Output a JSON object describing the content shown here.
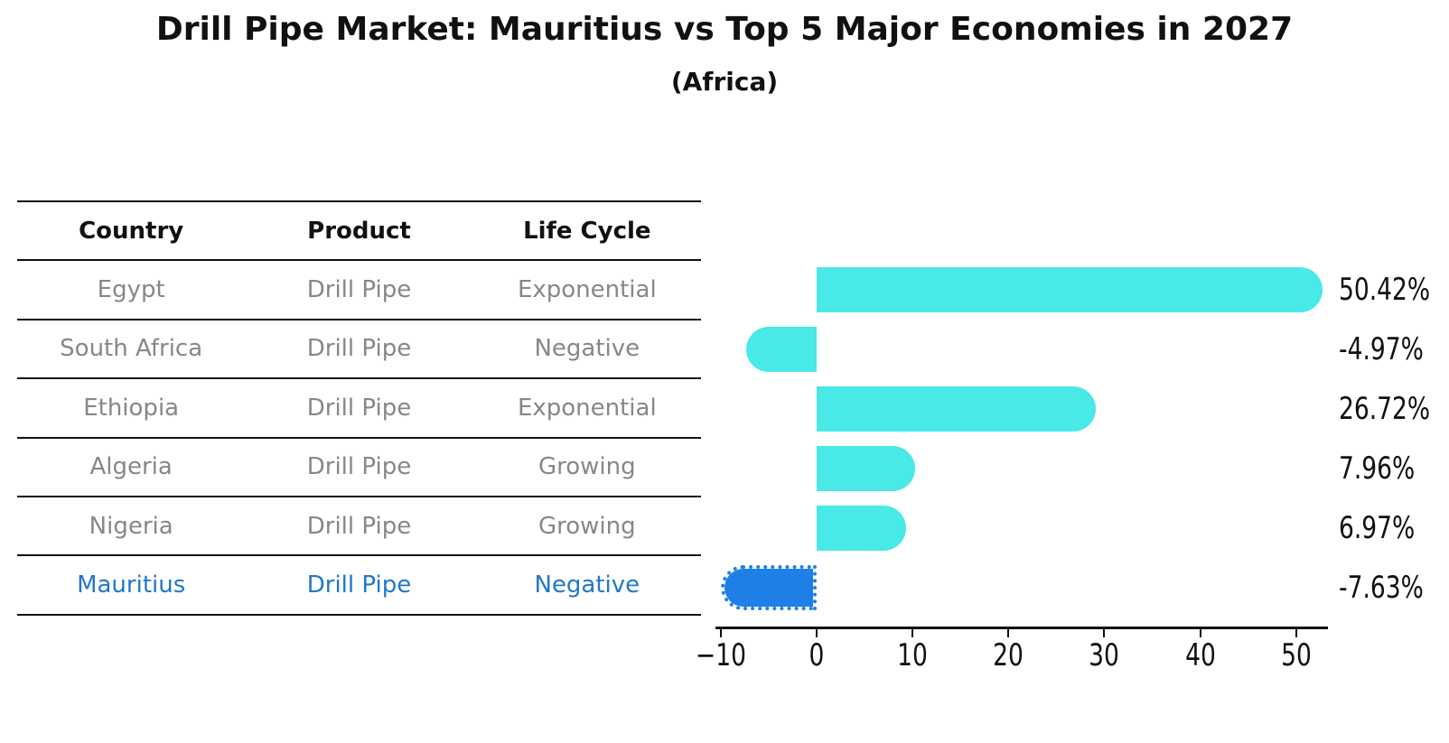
{
  "title": "Drill Pipe Market: Mauritius vs Top 5 Major Economies in 2027",
  "subtitle": "(Africa)",
  "table": {
    "columns": [
      "Country",
      "Product",
      "Life Cycle"
    ],
    "rows": [
      {
        "country": "Egypt",
        "product": "Drill Pipe",
        "life_cycle": "Exponential",
        "highlight": false
      },
      {
        "country": "South Africa",
        "product": "Drill Pipe",
        "life_cycle": "Negative",
        "highlight": false
      },
      {
        "country": "Ethiopia",
        "product": "Drill Pipe",
        "life_cycle": "Exponential",
        "highlight": false
      },
      {
        "country": "Algeria",
        "product": "Drill Pipe",
        "life_cycle": "Growing",
        "highlight": false
      },
      {
        "country": "Nigeria",
        "product": "Drill Pipe",
        "life_cycle": "Growing",
        "highlight": false
      },
      {
        "country": "Mauritius",
        "product": "Drill Pipe",
        "life_cycle": "Negative",
        "highlight": true
      }
    ]
  },
  "chart_data": {
    "type": "bar",
    "orientation": "horizontal",
    "title": "Drill Pipe Market: Mauritius vs Top 5 Major Economies in 2027",
    "subtitle": "(Africa)",
    "categories": [
      "Egypt",
      "South Africa",
      "Ethiopia",
      "Algeria",
      "Nigeria",
      "Mauritius"
    ],
    "values": [
      50.42,
      -4.97,
      26.72,
      7.96,
      6.97,
      -7.63
    ],
    "value_labels": [
      "50.42%",
      "-4.97%",
      "26.72%",
      "7.96%",
      "6.97%",
      "-7.63%"
    ],
    "x_ticks": [
      -10,
      0,
      10,
      20,
      30,
      40,
      50
    ],
    "x_tick_labels": [
      "−10",
      "0",
      "10",
      "20",
      "30",
      "40",
      "50"
    ],
    "xlim": [
      -10.55,
      53.32
    ],
    "grid": false,
    "legend": "none",
    "bar_color": "#48E9E6",
    "highlight_index": 5,
    "highlight_color": "#1E80E6",
    "highlight_border_style": "dotted"
  },
  "colors": {
    "background": "#ffffff",
    "text": "#111111",
    "table_line": "#111111",
    "muted_text": "#878787",
    "highlight_text": "#2178C8"
  }
}
